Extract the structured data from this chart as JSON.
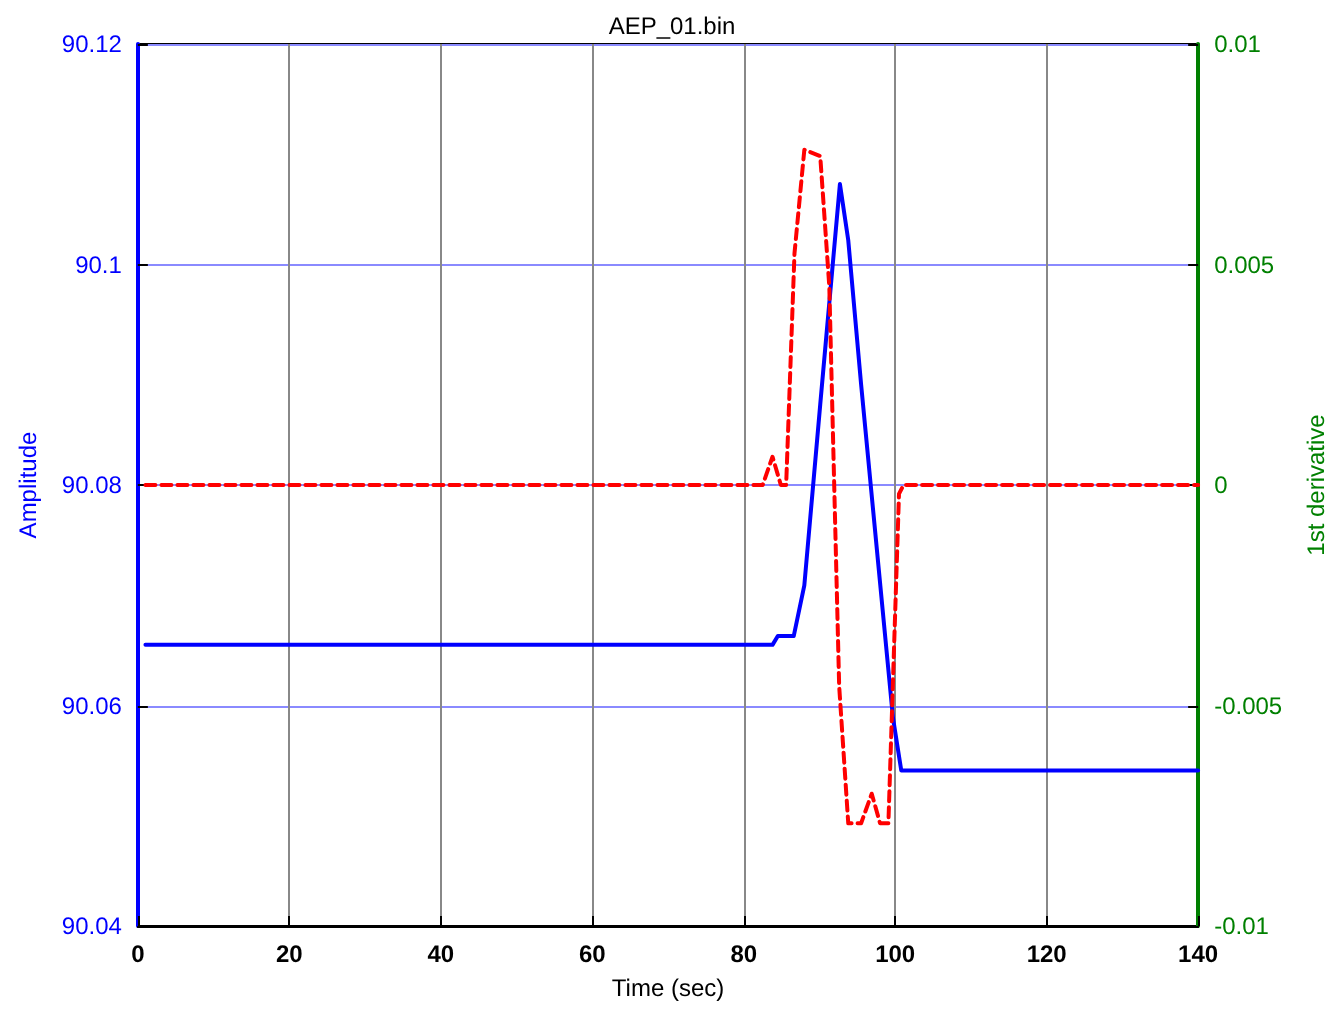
{
  "chart_data": {
    "type": "line",
    "title": "AEP_01.bin",
    "xlabel": "Time (sec)",
    "ylabel": "Amplitude",
    "y2label": "1st derivative",
    "series": [
      {
        "color": "#0000ff",
        "line_style": "solid",
        "x": [
          1,
          83.8,
          84.5,
          86.6,
          88,
          90.1,
          92.7,
          93.8,
          95.5,
          99.7,
          100.8,
          140
        ],
        "values": [
          90.0655,
          90.0655,
          90.0663,
          90.0663,
          90.0709,
          90.0873,
          90.1073,
          90.1022,
          90.0891,
          90.0589,
          90.0541,
          90.0541
        ]
      },
      {
        "color": "#ff0000",
        "line_style": "dashed",
        "axis": "y2",
        "x": [
          1,
          82.5,
          83.8,
          84.9,
          85.6,
          86.7,
          88,
          90.1,
          91.3,
          92.6,
          93.8,
          95.5,
          96.9,
          98,
          99.1,
          100.5,
          101.1,
          140
        ],
        "values": [
          0,
          0,
          0.00064,
          0,
          0,
          0.00525,
          0.0076,
          0.00746,
          0.0045,
          -0.00456,
          -0.00767,
          -0.00767,
          -0.007,
          -0.00767,
          -0.00767,
          -0.0002,
          0,
          0
        ]
      }
    ],
    "xlim": [
      0,
      140
    ],
    "xticks": [
      0,
      20,
      40,
      60,
      80,
      100,
      120,
      140
    ],
    "ylim": [
      90.04,
      90.12
    ],
    "yticks": [
      90.04,
      90.06,
      90.08,
      90.1,
      90.12
    ],
    "y2lim": [
      -0.01,
      0.01
    ],
    "y2ticks": [
      -0.01,
      -0.005,
      0,
      0.005,
      0.01
    ],
    "grid": true,
    "marker": "none"
  }
}
